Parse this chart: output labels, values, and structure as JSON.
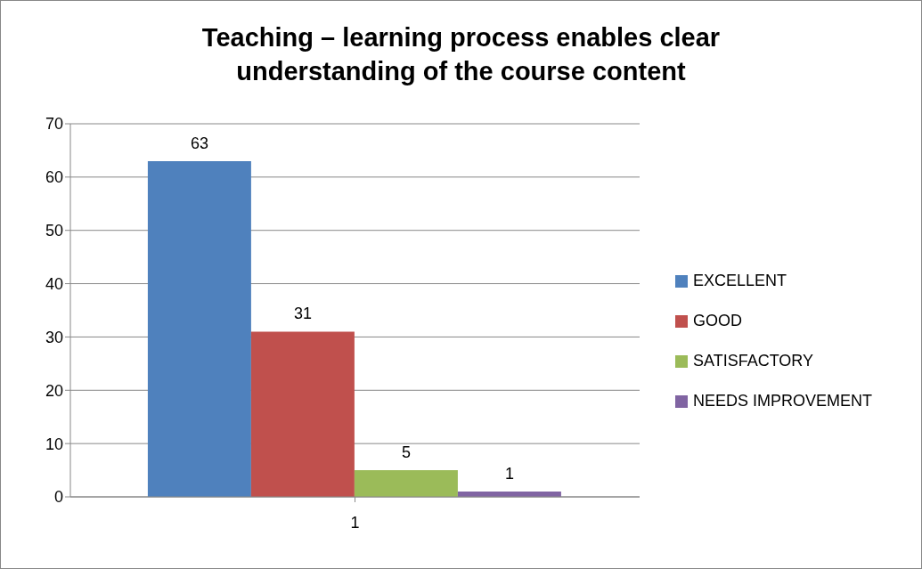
{
  "chart_data": {
    "type": "bar",
    "title": "Teaching – learning process enables clear understanding of the course content",
    "categories": [
      "1"
    ],
    "series": [
      {
        "name": "EXCELLENT",
        "color": "#4f81bd",
        "values": [
          63
        ]
      },
      {
        "name": "GOOD",
        "color": "#c0504d",
        "values": [
          31
        ]
      },
      {
        "name": "SATISFACTORY",
        "color": "#9bbb59",
        "values": [
          5
        ]
      },
      {
        "name": "NEEDS IMPROVEMENT",
        "color": "#8064a2",
        "values": [
          1
        ]
      }
    ],
    "ylim": [
      0,
      70
    ],
    "yticks": [
      0,
      10,
      20,
      30,
      40,
      50,
      60,
      70
    ],
    "grid": "y",
    "legend": "right",
    "data_labels": true
  }
}
